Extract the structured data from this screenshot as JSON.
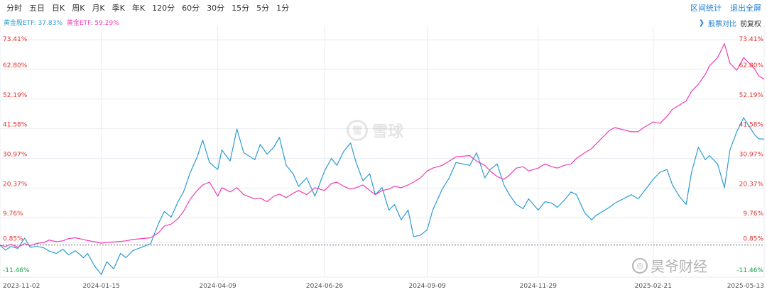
{
  "toolbar": {
    "periods": [
      "分时",
      "五日",
      "日K",
      "周K",
      "月K",
      "季K",
      "年K",
      "120分",
      "60分",
      "30分",
      "15分",
      "5分",
      "1分"
    ],
    "range_stats": "区间统计",
    "exit_fullscreen": "退出全屏"
  },
  "legend": {
    "series_1": "黄金股ETF: 37.83%",
    "series_2": "黄金ETF: 59.29%"
  },
  "compare": {
    "chevron": "❯",
    "stock_compare": "股票对比",
    "adjustment": "前复权"
  },
  "watermark": {
    "brand": "雪球",
    "source": "昊爷财经"
  },
  "colors": {
    "series_1": "#2b9bd3",
    "series_2": "#f03cb4",
    "positive": "#e0312e",
    "negative": "#0ea34b",
    "grid": "#e8ebf0",
    "baseline": "#6b6b6b"
  },
  "chart_data": {
    "type": "line",
    "y_unit": "%",
    "ylim": [
      -11.46,
      73.41
    ],
    "y_ticks": [
      "73.41%",
      "62.80%",
      "52.19%",
      "41.58%",
      "30.97%",
      "20.37%",
      "9.76%",
      "0.85%",
      "-11.46%"
    ],
    "y_tick_values": [
      73.41,
      62.8,
      52.19,
      41.58,
      30.97,
      20.37,
      9.76,
      0.85,
      -11.46
    ],
    "baseline_value": 0,
    "x_range": [
      "2023-11-02",
      "2025-05-13"
    ],
    "x_ticks": [
      "2023-11-02",
      "2024-01-15",
      "2024-04-09",
      "2024-06-26",
      "2024-09-09",
      "2024-11-29",
      "2025-02-21",
      "2025-05-13"
    ],
    "grid": true,
    "series": [
      {
        "name": "黄金股ETF",
        "final": "37.83%",
        "x": [
          "2023-11-02",
          "2023-11-06",
          "2023-11-10",
          "2023-11-15",
          "2023-11-20",
          "2023-11-24",
          "2023-11-29",
          "2023-12-04",
          "2023-12-08",
          "2023-12-13",
          "2023-12-18",
          "2023-12-22",
          "2023-12-27",
          "2024-01-02",
          "2024-01-05",
          "2024-01-10",
          "2024-01-15",
          "2024-01-19",
          "2024-01-24",
          "2024-01-29",
          "2024-02-02",
          "2024-02-07",
          "2024-02-20",
          "2024-02-26",
          "2024-03-01",
          "2024-03-06",
          "2024-03-11",
          "2024-03-15",
          "2024-03-20",
          "2024-03-25",
          "2024-03-29",
          "2024-04-03",
          "2024-04-09",
          "2024-04-12",
          "2024-04-18",
          "2024-04-23",
          "2024-04-28",
          "2024-05-06",
          "2024-05-10",
          "2024-05-15",
          "2024-05-20",
          "2024-05-24",
          "2024-05-29",
          "2024-06-03",
          "2024-06-07",
          "2024-06-13",
          "2024-06-19",
          "2024-06-26",
          "2024-07-01",
          "2024-07-05",
          "2024-07-10",
          "2024-07-15",
          "2024-07-19",
          "2024-07-24",
          "2024-07-29",
          "2024-08-02",
          "2024-08-07",
          "2024-08-12",
          "2024-08-16",
          "2024-08-21",
          "2024-08-26",
          "2024-08-30",
          "2024-09-04",
          "2024-09-09",
          "2024-09-13",
          "2024-09-20",
          "2024-09-25",
          "2024-09-30",
          "2024-10-10",
          "2024-10-15",
          "2024-10-21",
          "2024-10-25",
          "2024-10-30",
          "2024-11-04",
          "2024-11-08",
          "2024-11-13",
          "2024-11-18",
          "2024-11-22",
          "2024-11-29",
          "2024-12-04",
          "2024-12-09",
          "2024-12-13",
          "2024-12-18",
          "2024-12-23",
          "2024-12-27",
          "2025-01-02",
          "2025-01-07",
          "2025-01-10",
          "2025-01-15",
          "2025-01-20",
          "2025-01-24",
          "2025-02-05",
          "2025-02-10",
          "2025-02-14",
          "2025-02-21",
          "2025-02-26",
          "2025-03-03",
          "2025-03-07",
          "2025-03-12",
          "2025-03-17",
          "2025-03-21",
          "2025-03-26",
          "2025-03-31",
          "2025-04-03",
          "2025-04-09",
          "2025-04-14",
          "2025-04-18",
          "2025-04-23",
          "2025-04-28",
          "2025-05-06",
          "2025-05-09",
          "2025-05-13"
        ],
        "values": [
          0.0,
          -1.8,
          -0.5,
          -1.2,
          2.5,
          -0.8,
          -0.5,
          -1.0,
          -2.2,
          -3.0,
          -1.5,
          -3.5,
          -2.0,
          -4.5,
          -3.0,
          -7.5,
          -10.5,
          -6.0,
          -8.5,
          -3.0,
          -4.5,
          -2.0,
          0.5,
          8.0,
          12.0,
          10.0,
          15.5,
          19.0,
          26.0,
          31.5,
          37.5,
          29.5,
          27.0,
          34.0,
          30.0,
          41.5,
          33.0,
          30.5,
          36.0,
          32.5,
          35.0,
          38.5,
          28.5,
          25.5,
          21.0,
          24.0,
          17.5,
          26.5,
          31.0,
          28.5,
          33.5,
          36.5,
          29.5,
          23.0,
          25.5,
          18.0,
          20.5,
          12.5,
          14.5,
          9.0,
          12.5,
          3.0,
          3.5,
          5.5,
          12.5,
          20.0,
          24.0,
          29.5,
          28.5,
          33.0,
          24.0,
          27.0,
          29.0,
          21.5,
          18.0,
          14.5,
          13.0,
          16.5,
          12.5,
          15.5,
          15.0,
          13.5,
          16.0,
          19.0,
          18.0,
          11.5,
          9.0,
          10.5,
          12.0,
          13.5,
          15.0,
          18.0,
          16.5,
          19.0,
          23.5,
          26.0,
          27.0,
          21.5,
          17.5,
          14.5,
          26.0,
          35.0,
          30.5,
          32.0,
          29.0,
          20.5,
          34.0,
          40.5,
          45.5,
          39.5,
          38.0,
          37.83
        ]
      },
      {
        "name": "黄金ETF",
        "final": "59.29%",
        "x": [
          "2023-11-02",
          "2023-11-06",
          "2023-11-10",
          "2023-11-15",
          "2023-11-20",
          "2023-11-24",
          "2023-11-29",
          "2023-12-04",
          "2023-12-08",
          "2023-12-13",
          "2023-12-18",
          "2023-12-22",
          "2023-12-27",
          "2024-01-02",
          "2024-01-05",
          "2024-01-10",
          "2024-01-15",
          "2024-01-19",
          "2024-01-24",
          "2024-01-29",
          "2024-02-02",
          "2024-02-07",
          "2024-02-20",
          "2024-02-26",
          "2024-03-01",
          "2024-03-06",
          "2024-03-11",
          "2024-03-15",
          "2024-03-20",
          "2024-03-25",
          "2024-03-29",
          "2024-04-03",
          "2024-04-09",
          "2024-04-12",
          "2024-04-18",
          "2024-04-23",
          "2024-04-28",
          "2024-05-06",
          "2024-05-10",
          "2024-05-15",
          "2024-05-20",
          "2024-05-24",
          "2024-05-29",
          "2024-06-03",
          "2024-06-07",
          "2024-06-13",
          "2024-06-19",
          "2024-06-26",
          "2024-07-01",
          "2024-07-05",
          "2024-07-10",
          "2024-07-15",
          "2024-07-19",
          "2024-07-24",
          "2024-07-29",
          "2024-08-02",
          "2024-08-07",
          "2024-08-12",
          "2024-08-16",
          "2024-08-21",
          "2024-08-26",
          "2024-08-30",
          "2024-09-04",
          "2024-09-09",
          "2024-09-13",
          "2024-09-20",
          "2024-09-25",
          "2024-09-30",
          "2024-10-10",
          "2024-10-15",
          "2024-10-21",
          "2024-10-25",
          "2024-10-30",
          "2024-11-04",
          "2024-11-08",
          "2024-11-13",
          "2024-11-18",
          "2024-11-22",
          "2024-11-29",
          "2024-12-04",
          "2024-12-09",
          "2024-12-13",
          "2024-12-18",
          "2024-12-23",
          "2024-12-27",
          "2025-01-02",
          "2025-01-07",
          "2025-01-10",
          "2025-01-15",
          "2025-01-20",
          "2025-01-24",
          "2025-02-05",
          "2025-02-10",
          "2025-02-14",
          "2025-02-21",
          "2025-02-26",
          "2025-03-03",
          "2025-03-07",
          "2025-03-12",
          "2025-03-17",
          "2025-03-21",
          "2025-03-26",
          "2025-03-31",
          "2025-04-03",
          "2025-04-09",
          "2025-04-14",
          "2025-04-18",
          "2025-04-23",
          "2025-04-28",
          "2025-05-06",
          "2025-05-09",
          "2025-05-13"
        ],
        "values": [
          0.0,
          -0.5,
          0.3,
          -0.8,
          0.5,
          -0.2,
          0.6,
          0.9,
          1.8,
          1.2,
          1.5,
          2.3,
          2.6,
          2.0,
          1.6,
          1.2,
          0.7,
          0.9,
          1.1,
          1.3,
          1.5,
          2.0,
          2.6,
          4.5,
          6.8,
          7.5,
          9.5,
          12.0,
          16.5,
          19.5,
          21.5,
          22.5,
          17.5,
          20.5,
          19.0,
          20.5,
          18.0,
          16.5,
          16.8,
          15.5,
          17.5,
          18.2,
          17.0,
          18.5,
          19.5,
          18.0,
          20.5,
          19.5,
          22.0,
          22.5,
          21.0,
          20.0,
          20.5,
          21.5,
          19.5,
          18.0,
          19.5,
          20.0,
          21.0,
          20.5,
          21.5,
          22.5,
          24.0,
          26.5,
          27.5,
          28.5,
          30.0,
          31.5,
          32.0,
          30.0,
          28.5,
          26.5,
          24.5,
          23.5,
          25.0,
          27.5,
          28.0,
          26.5,
          27.5,
          29.0,
          28.0,
          27.5,
          28.5,
          29.0,
          31.0,
          33.0,
          34.5,
          36.0,
          38.5,
          41.0,
          42.0,
          40.5,
          40.5,
          42.0,
          44.0,
          43.5,
          46.0,
          48.5,
          50.0,
          51.5,
          55.0,
          57.5,
          61.0,
          64.0,
          67.0,
          72.0,
          65.0,
          62.5,
          67.0,
          63.0,
          60.5,
          59.29
        ]
      }
    ]
  }
}
